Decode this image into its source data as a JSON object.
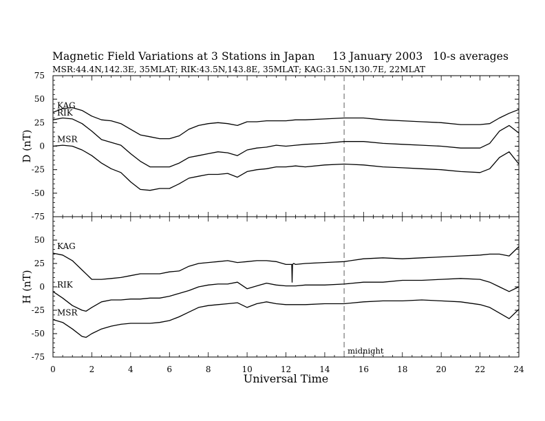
{
  "title": {
    "main": "Magnetic Field Variations at 3 Stations in Japan",
    "date": "13 January 2003",
    "averaging": "10-s averages",
    "stations_line": "MSR:44.4N,142.3E, 35MLAT;  RIK:43.5N,143.8E, 35MLAT;  KAG:31.5N,130.7E, 22MLAT"
  },
  "chart_data": [
    {
      "type": "line",
      "ylabel": "D (nT)",
      "ylim": [
        -75,
        75
      ],
      "yticks": [
        -75,
        -50,
        -25,
        0,
        25,
        50,
        75
      ],
      "xlim": [
        0,
        24
      ],
      "series": [
        {
          "name": "KAG",
          "x": [
            0,
            0.5,
            1,
            1.5,
            2,
            2.5,
            3,
            3.5,
            4,
            4.5,
            5,
            5.5,
            6,
            6.5,
            7,
            7.5,
            8,
            8.5,
            9,
            9.5,
            10,
            10.5,
            11,
            11.5,
            12,
            12.5,
            13,
            14,
            15,
            16,
            17,
            18,
            19,
            20,
            21,
            22,
            22.5,
            23,
            23.5,
            24
          ],
          "y": [
            36,
            40,
            41,
            38,
            32,
            28,
            27,
            24,
            18,
            12,
            10,
            8,
            8,
            11,
            18,
            22,
            24,
            25,
            24,
            22,
            26,
            26,
            27,
            27,
            27,
            28,
            28,
            29,
            30,
            30,
            28,
            27,
            26,
            25,
            23,
            23,
            24,
            30,
            35,
            39
          ]
        },
        {
          "name": "RIK",
          "x": [
            0,
            0.5,
            1,
            1.5,
            2,
            2.5,
            3,
            3.5,
            4,
            4.5,
            5,
            5.5,
            6,
            6.5,
            7,
            7.5,
            8,
            8.5,
            9,
            9.5,
            10,
            10.5,
            11,
            11.5,
            12,
            12.5,
            13,
            14,
            15,
            16,
            17,
            18,
            19,
            20,
            21,
            22,
            22.5,
            23,
            23.5,
            24
          ],
          "y": [
            28,
            30,
            29,
            24,
            16,
            7,
            4,
            1,
            -8,
            -16,
            -22,
            -22,
            -22,
            -18,
            -12,
            -10,
            -8,
            -6,
            -7,
            -10,
            -4,
            -2,
            -1,
            1,
            0,
            1,
            2,
            3,
            5,
            5,
            3,
            2,
            1,
            0,
            -2,
            -2,
            3,
            16,
            22,
            14
          ]
        },
        {
          "name": "MSR",
          "x": [
            0,
            0.5,
            1,
            1.5,
            2,
            2.5,
            3,
            3.5,
            4,
            4.5,
            5,
            5.5,
            6,
            6.5,
            7,
            7.5,
            8,
            8.5,
            9,
            9.5,
            10,
            10.5,
            11,
            11.5,
            12,
            12.5,
            13,
            14,
            15,
            16,
            17,
            18,
            19,
            20,
            21,
            22,
            22.5,
            23,
            23.5,
            24
          ],
          "y": [
            0,
            1,
            0,
            -4,
            -10,
            -18,
            -24,
            -28,
            -38,
            -46,
            -47,
            -45,
            -45,
            -40,
            -34,
            -32,
            -30,
            -30,
            -29,
            -33,
            -27,
            -25,
            -24,
            -22,
            -22,
            -21,
            -22,
            -20,
            -19,
            -20,
            -22,
            -23,
            -24,
            -25,
            -27,
            -28,
            -24,
            -12,
            -6,
            -19
          ]
        }
      ]
    },
    {
      "type": "line",
      "ylabel": "H (nT)",
      "xlabel": "Universal Time",
      "ylim": [
        -75,
        75
      ],
      "yticks": [
        -75,
        -50,
        -25,
        0,
        25,
        50,
        75
      ],
      "xlim": [
        0,
        24
      ],
      "xticks": [
        0,
        2,
        4,
        6,
        8,
        10,
        12,
        14,
        16,
        18,
        20,
        22,
        24
      ],
      "series": [
        {
          "name": "KAG",
          "x": [
            0,
            0.5,
            1,
            1.5,
            2,
            2.5,
            3,
            3.5,
            4,
            4.5,
            5,
            5.5,
            6,
            6.5,
            7,
            7.5,
            8,
            8.5,
            9,
            9.5,
            10,
            10.5,
            11,
            11.5,
            12,
            12.3,
            12.32,
            12.34,
            12.4,
            12.5,
            13,
            14,
            15,
            16,
            17,
            18,
            19,
            20,
            21,
            22,
            22.5,
            23,
            23.5,
            24
          ],
          "y": [
            36,
            34,
            28,
            18,
            8,
            8,
            9,
            10,
            12,
            14,
            14,
            14,
            16,
            17,
            22,
            25,
            26,
            27,
            28,
            26,
            27,
            28,
            28,
            27,
            24,
            24,
            5,
            24,
            25,
            24,
            25,
            26,
            27,
            30,
            31,
            30,
            31,
            32,
            33,
            34,
            35,
            35,
            33,
            43
          ]
        },
        {
          "name": "RIK",
          "x": [
            0,
            0.5,
            1,
            1.5,
            1.7,
            2,
            2.5,
            3,
            3.5,
            4,
            4.5,
            5,
            5.5,
            6,
            6.5,
            7,
            7.5,
            8,
            8.5,
            9,
            9.5,
            10,
            10.5,
            11,
            11.5,
            12,
            12.5,
            13,
            14,
            15,
            16,
            17,
            18,
            19,
            20,
            21,
            22,
            22.5,
            23,
            23.5,
            24
          ],
          "y": [
            -5,
            -12,
            -20,
            -25,
            -26,
            -22,
            -16,
            -14,
            -14,
            -13,
            -13,
            -12,
            -12,
            -10,
            -7,
            -4,
            0,
            2,
            3,
            3,
            5,
            -2,
            1,
            4,
            2,
            1,
            1,
            2,
            2,
            3,
            5,
            5,
            7,
            7,
            8,
            9,
            8,
            5,
            0,
            -5,
            0
          ]
        },
        {
          "name": "MSR",
          "x": [
            0,
            0.5,
            1,
            1.5,
            1.7,
            2,
            2.5,
            3,
            3.5,
            4,
            4.5,
            5,
            5.5,
            6,
            6.5,
            7,
            7.5,
            8,
            8.5,
            9,
            9.5,
            10,
            10.5,
            11,
            11.5,
            12,
            12.5,
            13,
            14,
            15,
            16,
            17,
            18,
            19,
            20,
            21,
            22,
            22.5,
            23,
            23.5,
            24
          ],
          "y": [
            -35,
            -38,
            -45,
            -53,
            -54,
            -50,
            -45,
            -42,
            -40,
            -39,
            -39,
            -39,
            -38,
            -36,
            -32,
            -27,
            -22,
            -20,
            -19,
            -18,
            -17,
            -22,
            -18,
            -16,
            -18,
            -19,
            -19,
            -19,
            -18,
            -18,
            -16,
            -15,
            -15,
            -14,
            -15,
            -16,
            -19,
            -22,
            -28,
            -34,
            -24
          ]
        }
      ]
    }
  ],
  "annotation": {
    "label": "midnight",
    "x": 15
  }
}
